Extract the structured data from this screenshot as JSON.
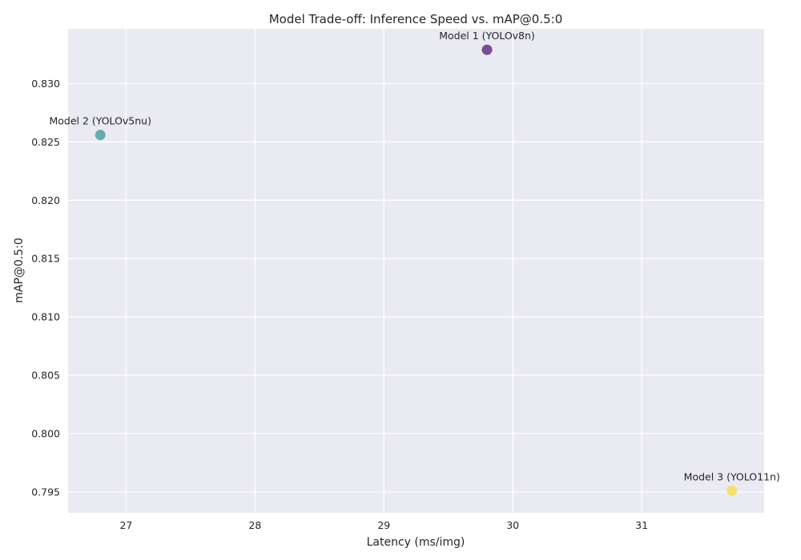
{
  "chart_data": {
    "type": "scatter",
    "title": "Model Trade-off: Inference Speed vs. mAP@0.5:0",
    "xlabel": "Latency (ms/img)",
    "ylabel": "mAP@0.5:0",
    "xlim": [
      26.55,
      31.95
    ],
    "ylim": [
      0.7932,
      0.8347
    ],
    "xticks": [
      27,
      28,
      29,
      30,
      31
    ],
    "yticks": [
      0.795,
      0.8,
      0.805,
      0.81,
      0.815,
      0.82,
      0.825,
      0.83
    ],
    "grid": true,
    "points": [
      {
        "label": "Model 1 (YOLOv8n)",
        "x": 29.8,
        "y": 0.8329,
        "color": "#6a3d85"
      },
      {
        "label": "Model 2 (YOLOv5nu)",
        "x": 26.8,
        "y": 0.8256,
        "color": "#55a6a6"
      },
      {
        "label": "Model 3 (YOLO11n)",
        "x": 31.7,
        "y": 0.7951,
        "color": "#f5e15a"
      }
    ]
  }
}
